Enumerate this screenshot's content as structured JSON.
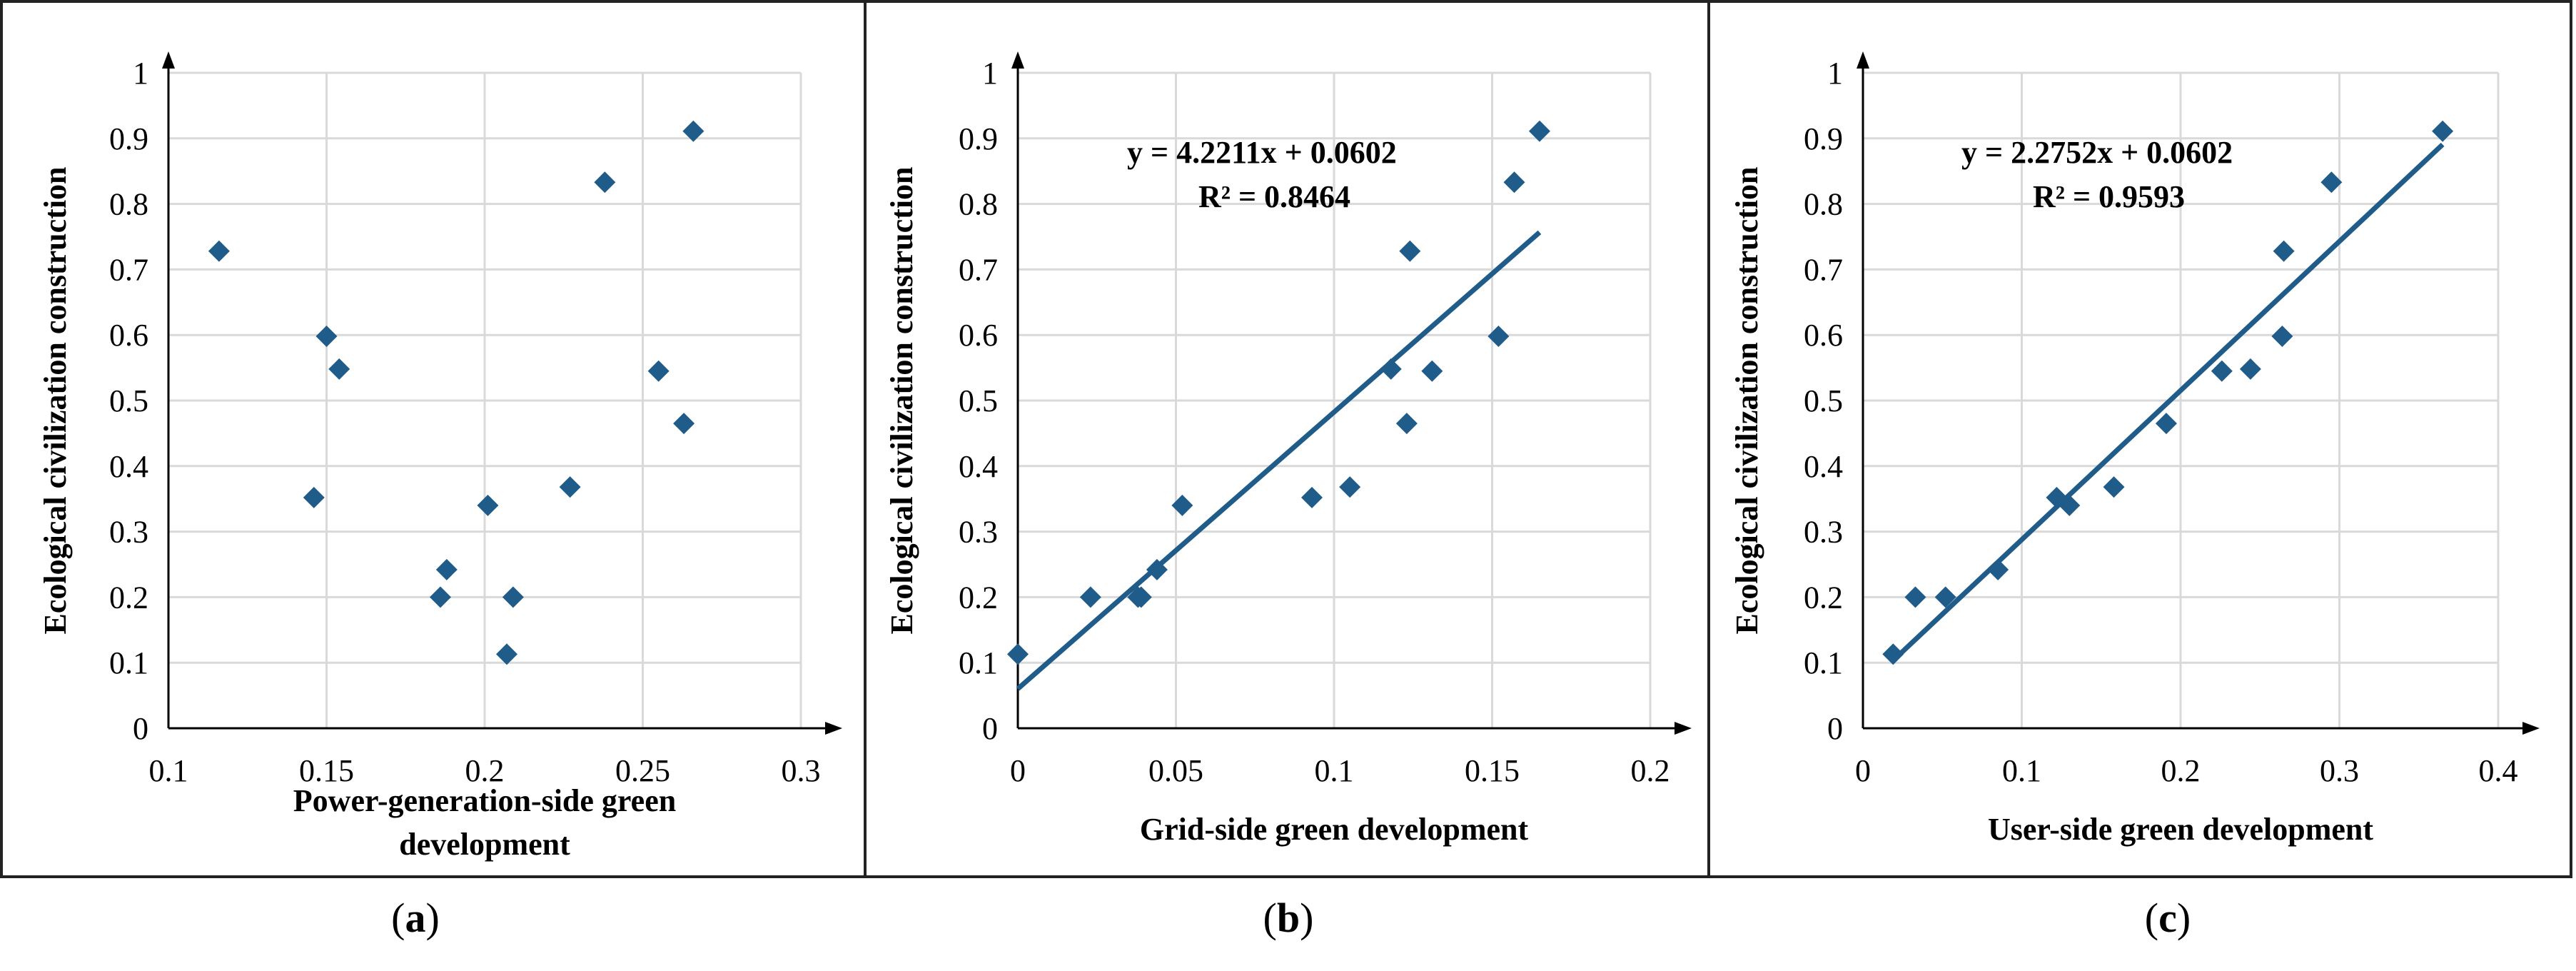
{
  "colors": {
    "marker": "#1F5C8A",
    "trendline": "#1F5C8A",
    "grid": "#D9D9D9",
    "axis": "#000000",
    "border": "#222222"
  },
  "captions": [
    {
      "open": "(",
      "letter": "a",
      "close": ")"
    },
    {
      "open": "(",
      "letter": "b",
      "close": ")"
    },
    {
      "open": "(",
      "letter": "c",
      "close": ")"
    }
  ],
  "chart_data": [
    {
      "type": "scatter",
      "panel": "a",
      "xlabel": [
        "Power-generation-side green",
        "development"
      ],
      "ylabel": "Ecological civilization construction",
      "xlim": [
        0.1,
        0.3
      ],
      "ylim": [
        0,
        1
      ],
      "xticks": [
        0.1,
        0.15,
        0.2,
        0.25,
        0.3
      ],
      "xtick_labels": [
        "0.1",
        "0.15",
        "0.2",
        "0.25",
        "0.3"
      ],
      "yticks": [
        0,
        0.1,
        0.2,
        0.3,
        0.4,
        0.5,
        0.6,
        0.7,
        0.8,
        0.9,
        1
      ],
      "ytick_labels": [
        "0",
        "0.1",
        "0.2",
        "0.3",
        "0.4",
        "0.5",
        "0.6",
        "0.7",
        "0.8",
        "0.9",
        "1"
      ],
      "grid": true,
      "x": [
        0.116,
        0.146,
        0.15,
        0.154,
        0.186,
        0.188,
        0.201,
        0.207,
        0.209,
        0.227,
        0.238,
        0.255,
        0.263,
        0.266
      ],
      "y": [
        0.728,
        0.352,
        0.598,
        0.548,
        0.2,
        0.242,
        0.34,
        0.113,
        0.2,
        0.368,
        0.833,
        0.545,
        0.465,
        0.911
      ],
      "trendline": null,
      "equation": null,
      "r_squared": null
    },
    {
      "type": "scatter",
      "panel": "b",
      "xlabel": [
        "Grid-side green development"
      ],
      "ylabel": "Ecological civilization construction",
      "xlim": [
        0,
        0.2
      ],
      "ylim": [
        0,
        1
      ],
      "xticks": [
        0,
        0.05,
        0.1,
        0.15,
        0.2
      ],
      "xtick_labels": [
        "0",
        "0.05",
        "0.1",
        "0.15",
        "0.2"
      ],
      "yticks": [
        0,
        0.1,
        0.2,
        0.3,
        0.4,
        0.5,
        0.6,
        0.7,
        0.8,
        0.9,
        1
      ],
      "ytick_labels": [
        "0",
        "0.1",
        "0.2",
        "0.3",
        "0.4",
        "0.5",
        "0.6",
        "0.7",
        "0.8",
        "0.9",
        "1"
      ],
      "grid": true,
      "x": [
        0.0,
        0.023,
        0.038,
        0.039,
        0.044,
        0.052,
        0.093,
        0.105,
        0.118,
        0.123,
        0.124,
        0.131,
        0.152,
        0.157,
        0.165
      ],
      "y": [
        0.113,
        0.2,
        0.2,
        0.2,
        0.242,
        0.34,
        0.352,
        0.368,
        0.548,
        0.465,
        0.728,
        0.545,
        0.598,
        0.833,
        0.911
      ],
      "trendline": {
        "slope": 4.2211,
        "intercept": 0.0602,
        "x_range": [
          0,
          0.165
        ]
      },
      "equation": "y = 4.2211x + 0.0602",
      "r_squared": "R² = 0.8464"
    },
    {
      "type": "scatter",
      "panel": "c",
      "xlabel": [
        "User-side green development"
      ],
      "ylabel": "Ecological civilization construction",
      "xlim": [
        0,
        0.4
      ],
      "ylim": [
        0,
        1
      ],
      "xticks": [
        0,
        0.1,
        0.2,
        0.3,
        0.4
      ],
      "xtick_labels": [
        "0",
        "0.1",
        "0.2",
        "0.3",
        "0.4"
      ],
      "yticks": [
        0,
        0.1,
        0.2,
        0.3,
        0.4,
        0.5,
        0.6,
        0.7,
        0.8,
        0.9,
        1
      ],
      "ytick_labels": [
        "0",
        "0.1",
        "0.2",
        "0.3",
        "0.4",
        "0.5",
        "0.6",
        "0.7",
        "0.8",
        "0.9",
        "1"
      ],
      "grid": true,
      "x": [
        0.019,
        0.033,
        0.052,
        0.085,
        0.122,
        0.13,
        0.158,
        0.191,
        0.226,
        0.244,
        0.264,
        0.265,
        0.295,
        0.365
      ],
      "y": [
        0.113,
        0.2,
        0.2,
        0.242,
        0.352,
        0.34,
        0.368,
        0.465,
        0.545,
        0.548,
        0.598,
        0.728,
        0.833,
        0.911
      ],
      "trendline": {
        "slope": 2.2752,
        "intercept": 0.0602,
        "x_range": [
          0.019,
          0.365
        ]
      },
      "equation": "y = 2.2752x + 0.0602",
      "r_squared": "R² = 0.9593"
    }
  ]
}
